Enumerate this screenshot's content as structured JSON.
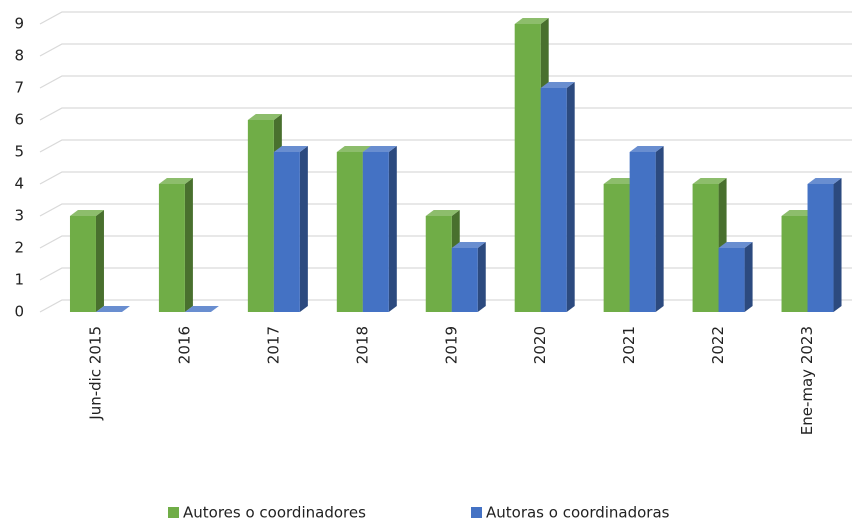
{
  "chart_data": {
    "type": "bar",
    "categories": [
      "Jun-dic 2015",
      "2016",
      "2017",
      "2018",
      "2019",
      "2020",
      "2021",
      "2022",
      "Ene-may 2023"
    ],
    "series": [
      {
        "name": "Autores o coordinadores",
        "color": "#70ad47",
        "values": [
          3,
          4,
          6,
          5,
          3,
          9,
          4,
          4,
          3
        ]
      },
      {
        "name": "Autoras o coordinadoras",
        "color": "#4472c4",
        "values": [
          0,
          0,
          5,
          5,
          2,
          7,
          5,
          2,
          4
        ]
      }
    ],
    "ylim": [
      0,
      9
    ],
    "yticks": [
      0,
      1,
      2,
      3,
      4,
      5,
      6,
      7,
      8,
      9
    ],
    "grid": true,
    "legend": "bottom"
  }
}
